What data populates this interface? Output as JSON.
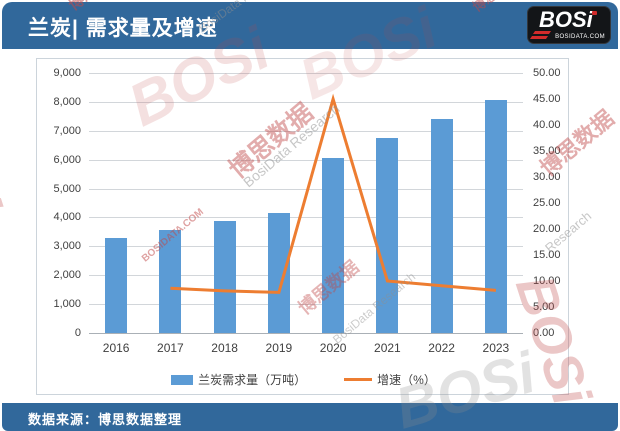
{
  "header": {
    "title": "兰炭| 需求量及增速",
    "logo": {
      "text": "BOSi",
      "domain": "BOSIDATA.COM"
    }
  },
  "footer": {
    "source": "数据来源：博思数据整理"
  },
  "chart_data": {
    "type": "bar",
    "title": "兰炭| 需求量及增速",
    "categories": [
      "2016",
      "2017",
      "2018",
      "2019",
      "2020",
      "2021",
      "2022",
      "2023"
    ],
    "series": [
      {
        "name": "兰炭需求量（万吨）",
        "type": "bar",
        "axis": "left",
        "color": "#5B9BD5",
        "values": [
          3300,
          3560,
          3860,
          4160,
          6050,
          6750,
          7400,
          8060
        ]
      },
      {
        "name": "增速（%）",
        "type": "line",
        "axis": "right",
        "color": "#ED7D31",
        "values": [
          null,
          8.6,
          8.1,
          7.8,
          45.0,
          10.0,
          9.1,
          8.2
        ]
      }
    ],
    "left_axis": {
      "min": 0,
      "max": 9000,
      "step": 1000,
      "tick_labels": [
        "9,000",
        "8,000",
        "7,000",
        "6,000",
        "5,000",
        "4,000",
        "3,000",
        "2,000",
        "1,000",
        "0"
      ]
    },
    "right_axis": {
      "min": 0,
      "max": 50,
      "step": 5,
      "tick_labels": [
        "50.00",
        "45.00",
        "40.00",
        "35.00",
        "30.00",
        "25.00",
        "20.00",
        "15.00",
        "10.00",
        "5.00",
        "0.00"
      ]
    },
    "legend": [
      "兰炭需求量（万吨）",
      "增速（%）"
    ],
    "legend_position": "bottom",
    "grid": true
  },
  "colors": {
    "header_bg": "#31689B",
    "bar": "#5B9BD5",
    "line": "#ED7D31",
    "axis_text": "#404040",
    "logo_bg": "#131518",
    "logo_red": "#D22B2B",
    "watermark_red": "#C04848",
    "watermark_gray": "#8F8F8F"
  },
  "watermarks": [
    {
      "text": "BOSi"
    },
    {
      "text": "博思数据"
    },
    {
      "text": "BosiData Research"
    },
    {
      "text": "BOSi"
    },
    {
      "text": "博思数据"
    },
    {
      "text": "BosiData Research"
    },
    {
      "text": "BOSIDATA.COM"
    },
    {
      "text": "BOSi"
    },
    {
      "text": "博思数据"
    },
    {
      "text": "Research"
    },
    {
      "text": "博思数据"
    },
    {
      "text": "BOSi"
    },
    {
      "text": "BOSi"
    },
    {
      "text": "BosiData Research"
    },
    {
      "text": "博思数据"
    }
  ]
}
